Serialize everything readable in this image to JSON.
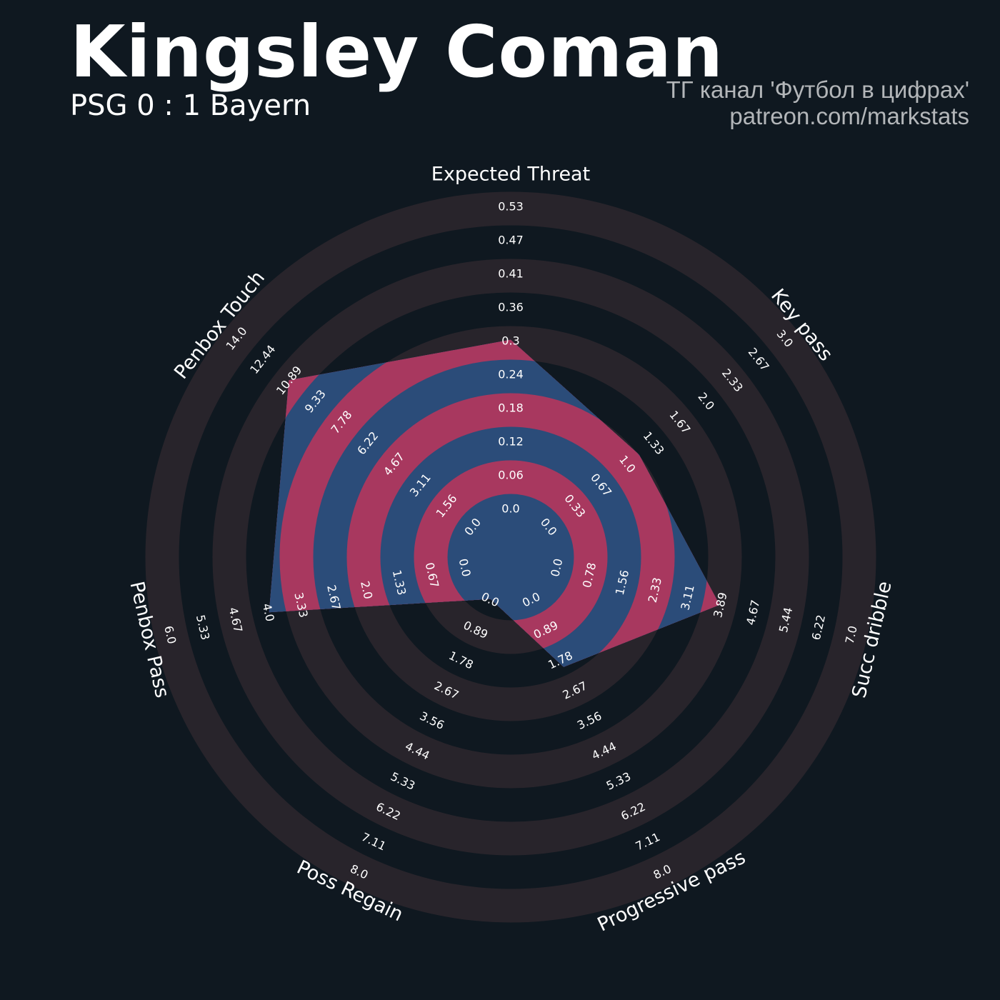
{
  "header": {
    "title": "Kingsley Coman",
    "subtitle": "PSG 0 : 1 Bayern",
    "credit_line1": "ТГ канал 'Футбол в цифрах'",
    "credit_line2": "patreon.com/markstats"
  },
  "colors": {
    "background": "#0f1820",
    "ring_dark": "#28242b",
    "ring_light": "#0f1820",
    "polygon_fill": "#2b4c79",
    "polygon_ring": "#a8385f",
    "tick_text": "#ffffff",
    "credit_text": "#b3b6b9"
  },
  "chart_data": {
    "type": "radar",
    "title": "Kingsley Coman",
    "rings": 10,
    "axes": [
      {
        "name": "Expected Threat",
        "min": 0.0,
        "max": 0.53,
        "ticks": [
          "0.0",
          "0.06",
          "0.12",
          "0.18",
          "0.24",
          "0.3",
          "0.36",
          "0.41",
          "0.47",
          "0.53"
        ],
        "value": 0.3
      },
      {
        "name": "Key pass",
        "min": 0.0,
        "max": 3.0,
        "ticks": [
          "0.0",
          "0.33",
          "0.67",
          "1.0",
          "1.33",
          "1.67",
          "2.0",
          "2.33",
          "2.67",
          "3.0"
        ],
        "value": 1.17
      },
      {
        "name": "Succ dribble",
        "min": 0.0,
        "max": 7.0,
        "ticks": [
          "0.0",
          "0.78",
          "1.56",
          "2.33",
          "3.11",
          "3.89",
          "4.67",
          "5.44",
          "6.22",
          "7.0"
        ],
        "value": 3.89
      },
      {
        "name": "Progressive pass",
        "min": 0.0,
        "max": 8.0,
        "ticks": [
          "0.0",
          "0.89",
          "1.78",
          "2.67",
          "3.56",
          "4.44",
          "5.33",
          "6.22",
          "7.11",
          "8.0"
        ],
        "value": 2.0
      },
      {
        "name": "Poss Regain",
        "min": 0.0,
        "max": 8.0,
        "ticks": [
          "0.0",
          "0.89",
          "1.78",
          "2.67",
          "3.56",
          "4.44",
          "5.33",
          "6.22",
          "7.11",
          "8.0"
        ],
        "value": 0.0
      },
      {
        "name": "Penbox Pass",
        "min": 0.0,
        "max": 6.0,
        "ticks": [
          "0.0",
          "0.67",
          "1.33",
          "2.0",
          "2.67",
          "3.33",
          "4.0",
          "4.67",
          "5.33",
          "6.0"
        ],
        "value": 4.0
      },
      {
        "name": "Penbox Touch",
        "min": 0.0,
        "max": 14.0,
        "ticks": [
          "0.0",
          "1.56",
          "3.11",
          "4.67",
          "6.22",
          "7.78",
          "9.33",
          "10.89",
          "12.44",
          "14.0"
        ],
        "value": 11.0
      }
    ]
  }
}
